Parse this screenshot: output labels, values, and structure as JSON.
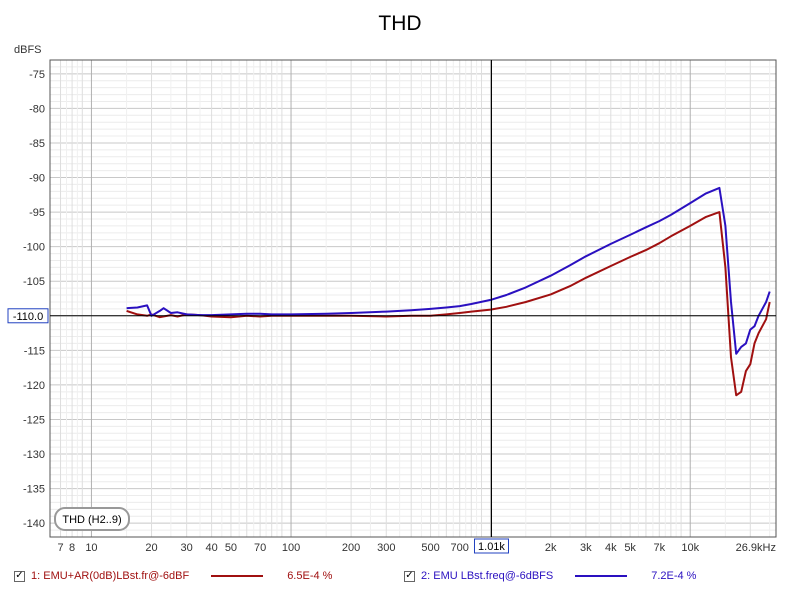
{
  "chart_data": {
    "type": "line",
    "title": "THD",
    "ylabel": "dBFS",
    "xunit_label": "26.9kHz",
    "x_scale": "log",
    "xlim": [
      6.2,
      26900
    ],
    "ylim": [
      -142,
      -73
    ],
    "grid": true,
    "y_ticks": [
      "-75",
      "-80",
      "-85",
      "-90",
      "-95",
      "-100",
      "-105",
      "-110.0",
      "-115",
      "-120",
      "-125",
      "-130",
      "-135",
      "-140"
    ],
    "x_ticks": [
      "7",
      "8",
      "10",
      "20",
      "30",
      "40",
      "50",
      "70",
      "100",
      "200",
      "300",
      "500",
      "700",
      "1.01k",
      "2k",
      "3k",
      "4k",
      "5k",
      "7k",
      "10k"
    ],
    "cursor": {
      "x_label": "1.01k",
      "y_label": "-110.0"
    },
    "badge": "THD (H2..9)",
    "series": [
      {
        "name": "1: EMU+AR(0dB)LBst.fr@-6dBF",
        "color": "#a01010",
        "x": [
          15,
          17,
          19,
          20,
          22,
          25,
          27,
          30,
          35,
          40,
          50,
          60,
          70,
          80,
          100,
          150,
          200,
          300,
          400,
          500,
          600,
          700,
          800,
          1000,
          1200,
          1500,
          2000,
          2500,
          3000,
          4000,
          5000,
          6000,
          7000,
          8000,
          10000,
          12000,
          14000,
          15000,
          16000,
          17000,
          18000,
          19000,
          20000,
          21000,
          22000,
          24000,
          25000
        ],
        "values": [
          -109.3,
          -109.8,
          -110,
          -109.8,
          -110.2,
          -109.9,
          -110.1,
          -109.8,
          -109.9,
          -110.1,
          -110.2,
          -110,
          -110.1,
          -110,
          -110,
          -110,
          -110,
          -110.1,
          -110,
          -110,
          -109.8,
          -109.6,
          -109.4,
          -109.1,
          -108.7,
          -108,
          -106.9,
          -105.7,
          -104.5,
          -102.8,
          -101.5,
          -100.5,
          -99.5,
          -98.5,
          -97,
          -95.7,
          -95,
          -103,
          -116,
          -121.5,
          -121,
          -118,
          -117,
          -114,
          -112.5,
          -110.5,
          -108
        ]
      },
      {
        "name": "2: EMU LBst.freq@-6dBFS",
        "color": "#2a10c0",
        "x": [
          15,
          17,
          19,
          20,
          22,
          23,
          25,
          27,
          30,
          35,
          40,
          50,
          60,
          70,
          80,
          100,
          150,
          200,
          300,
          400,
          500,
          600,
          700,
          800,
          1000,
          1200,
          1500,
          2000,
          2500,
          3000,
          4000,
          5000,
          6000,
          7000,
          8000,
          10000,
          12000,
          14000,
          15000,
          16000,
          17000,
          18000,
          19000,
          20000,
          21000,
          22000,
          24000,
          25000
        ],
        "values": [
          -108.9,
          -108.8,
          -108.5,
          -110,
          -109.3,
          -108.9,
          -109.6,
          -109.5,
          -109.8,
          -109.9,
          -109.9,
          -109.8,
          -109.7,
          -109.7,
          -109.8,
          -109.8,
          -109.7,
          -109.6,
          -109.4,
          -109.2,
          -109,
          -108.8,
          -108.6,
          -108.3,
          -107.7,
          -107,
          -105.9,
          -104.2,
          -102.7,
          -101.4,
          -99.6,
          -98.3,
          -97.2,
          -96.3,
          -95.4,
          -93.7,
          -92.3,
          -91.5,
          -97,
          -108,
          -115.5,
          -114.5,
          -114,
          -112,
          -111.5,
          -110,
          -108,
          -106.5
        ]
      }
    ]
  },
  "legend": [
    {
      "label": "1: EMU+AR(0dB)LBst.fr@-6dBF",
      "value": "6.5E-4 %",
      "color": "#a01010",
      "checked": "✓"
    },
    {
      "label": "2: EMU LBst.freq@-6dBFS",
      "value": "7.2E-4 %",
      "color": "#2a10c0",
      "checked": "✓"
    }
  ]
}
